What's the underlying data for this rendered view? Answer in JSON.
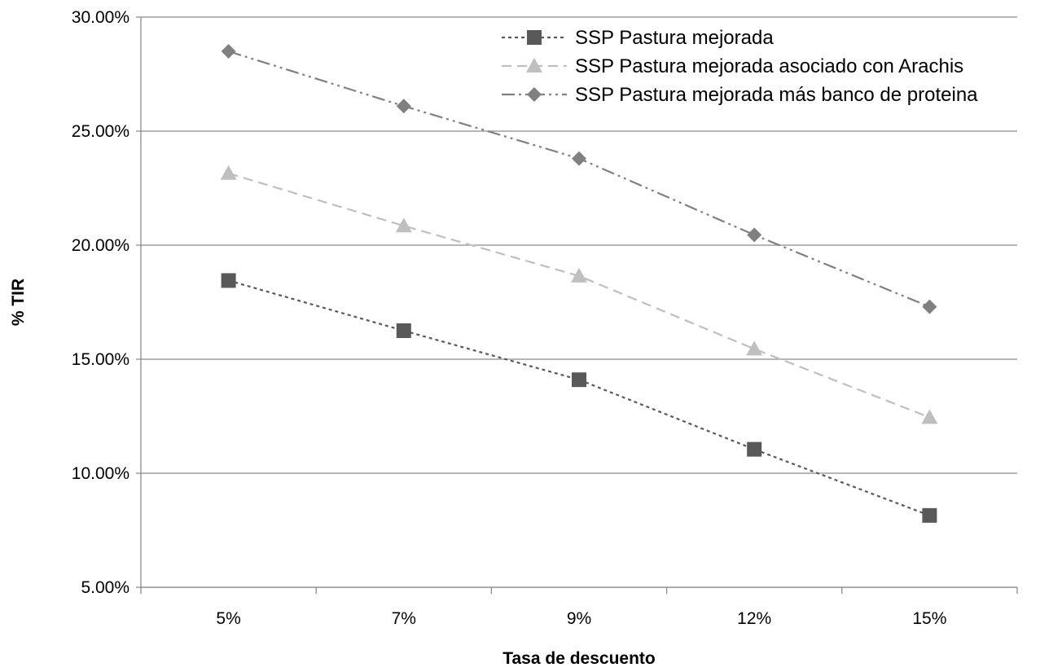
{
  "chart_data": {
    "type": "line",
    "title": "",
    "xlabel": "Tasa de descuento",
    "ylabel": "% TIR",
    "categories": [
      "5%",
      "7%",
      "9%",
      "12%",
      "15%"
    ],
    "ylim": [
      5,
      30
    ],
    "yticks": [
      5,
      10,
      15,
      20,
      25,
      30
    ],
    "ytick_labels": [
      "5.00%",
      "10.00%",
      "15.00%",
      "20.00%",
      "25.00%",
      "30.00%"
    ],
    "grid": true,
    "legend_position": "top-right",
    "series": [
      {
        "name": "SSP Pastura mejorada",
        "values": [
          18.45,
          16.25,
          14.1,
          11.05,
          8.15
        ],
        "color": "#595959",
        "marker": "square",
        "line_style": "dotted"
      },
      {
        "name": "SSP Pastura mejorada asociado con Arachis",
        "values": [
          23.15,
          20.85,
          18.65,
          15.45,
          12.45
        ],
        "color": "#bfbfbf",
        "marker": "triangle",
        "line_style": "dashed"
      },
      {
        "name": "SSP Pastura mejorada más banco de proteina",
        "values": [
          28.5,
          26.1,
          23.8,
          20.45,
          17.3
        ],
        "color": "#808080",
        "marker": "diamond",
        "line_style": "dash-dot-dot"
      }
    ]
  }
}
